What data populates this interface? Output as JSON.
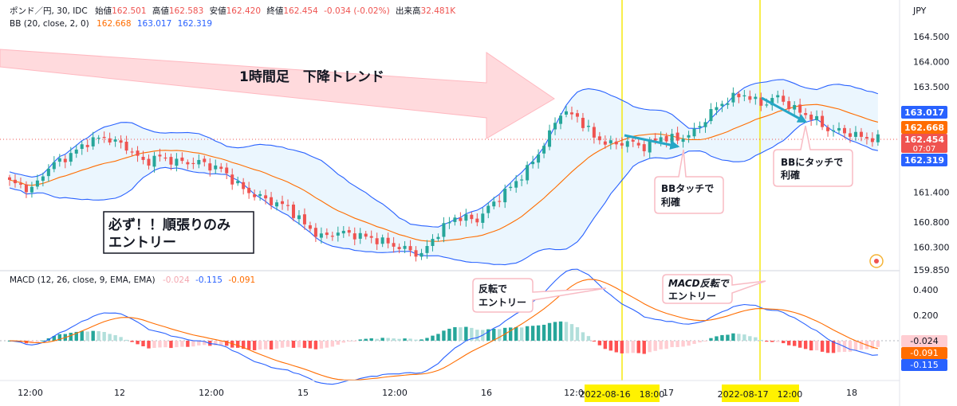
{
  "legend": {
    "symbol": "ポンド／円, 30, IDC",
    "open_label": "始値",
    "open": "162.501",
    "high_label": "高値",
    "high": "162.583",
    "low_label": "安値",
    "low": "162.420",
    "close_label": "終値",
    "close": "162.454",
    "change": "-0.034 (-0.02%)",
    "volume_label": "出来高",
    "volume": "32.481K",
    "bb_label": "BB (20, close, 2, 0)",
    "bb_basis": "162.668",
    "bb_upper": "163.017",
    "bb_lower": "162.319",
    "macd_label": "MACD (12, 26, close, 9, EMA, EMA)",
    "macd_hist": "-0.024",
    "macd_line": "-0.115",
    "macd_signal": "-0.091"
  },
  "annotations": {
    "trend": "1時間足　下降トレンド",
    "rule_line1": "必ず！！順張りのみ",
    "rule_line2": "エントリー",
    "bb_tp1_line1": "BBタッチで",
    "bb_tp1_line2": "利確",
    "bb_tp2_line1": "BBにタッチで",
    "bb_tp2_line2": "利確",
    "macd1_line1": "反転で",
    "macd1_line2": "エントリー",
    "macd2_line1": "MACD反転で",
    "macd2_line2": "エントリー"
  },
  "price_badges": {
    "upper": "163.017",
    "basis": "162.668",
    "last": "162.454",
    "countdown": "07:07",
    "lower": "162.319"
  },
  "macd_badges": {
    "hist": "-0.024",
    "signal": "-0.091",
    "macd": "-0.115"
  },
  "vline_labels": [
    "2022-08-16　18:00",
    "2022-08-17　12:00"
  ],
  "colors": {
    "up": "#26a69a",
    "down": "#ef5350",
    "bb_band": "#2962ff",
    "bb_basis": "#ff6d00",
    "bb_fill": "#e3f2fd",
    "macd_line": "#2962ff",
    "signal_line": "#ff6d00",
    "hist_up": "#26a69a",
    "hist_up_light": "#b2dfdb",
    "hist_down": "#ff5252",
    "hist_down_light": "#ffcdd2",
    "vline": "#f5e700",
    "arrow": "#ffcdd2",
    "touch_arrow": "#26a6c6"
  },
  "chart_data": {
    "type": "candlestick",
    "symbol": "ポンド／円",
    "interval": "30",
    "price_axis": {
      "unit": "JPY",
      "ticks": [
        164.5,
        164.0,
        163.5,
        161.4,
        160.8,
        160.3,
        159.85
      ],
      "tick_labels": [
        "164.500",
        "164.000",
        "163.500",
        "161.400",
        "160.800",
        "160.300",
        "159.850"
      ]
    },
    "macd_axis": {
      "ticks": [
        0.4,
        0.2
      ],
      "tick_labels": [
        "0.400",
        "0.200"
      ]
    },
    "x_ticks": [
      "12:00",
      "12",
      "12:00",
      "15",
      "12:00",
      "16",
      "12:00",
      "17",
      "12:00",
      "18"
    ],
    "close_anchors": [
      [
        0,
        161.6
      ],
      [
        4,
        161.45
      ],
      [
        7,
        161.9
      ],
      [
        11,
        162.15
      ],
      [
        14,
        162.4
      ],
      [
        17,
        162.5
      ],
      [
        21,
        162.3
      ],
      [
        24,
        162.0
      ],
      [
        27,
        162.1
      ],
      [
        30,
        162.0
      ],
      [
        34,
        162.0
      ],
      [
        38,
        161.85
      ],
      [
        42,
        161.45
      ],
      [
        46,
        161.25
      ],
      [
        50,
        161.1
      ],
      [
        53,
        160.75
      ],
      [
        56,
        160.5
      ],
      [
        59,
        160.6
      ],
      [
        62,
        160.55
      ],
      [
        66,
        160.45
      ],
      [
        70,
        160.3
      ],
      [
        74,
        160.15
      ],
      [
        77,
        160.6
      ],
      [
        80,
        160.9
      ],
      [
        84,
        160.85
      ],
      [
        87,
        161.2
      ],
      [
        90,
        161.5
      ],
      [
        93,
        161.85
      ],
      [
        96,
        162.35
      ],
      [
        99,
        163.0
      ],
      [
        102,
        162.9
      ],
      [
        105,
        162.5
      ],
      [
        108,
        162.35
      ],
      [
        111,
        162.4
      ],
      [
        114,
        162.3
      ],
      [
        117,
        162.5
      ],
      [
        120,
        162.45
      ],
      [
        123,
        162.6
      ],
      [
        126,
        163.0
      ],
      [
        129,
        163.25
      ],
      [
        132,
        163.35
      ],
      [
        135,
        163.15
      ],
      [
        138,
        163.3
      ],
      [
        141,
        163.05
      ],
      [
        144,
        162.9
      ],
      [
        147,
        162.65
      ],
      [
        150,
        162.6
      ],
      [
        153,
        162.5
      ],
      [
        156,
        162.45
      ]
    ],
    "vertical_markers": [
      "2022-08-16 18:00",
      "2022-08-17 12:00"
    ]
  }
}
